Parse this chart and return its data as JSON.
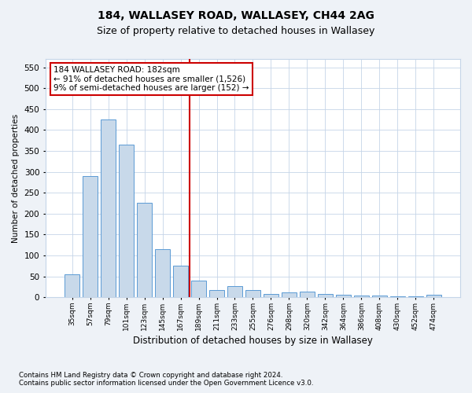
{
  "title": "184, WALLASEY ROAD, WALLASEY, CH44 2AG",
  "subtitle": "Size of property relative to detached houses in Wallasey",
  "xlabel": "Distribution of detached houses by size in Wallasey",
  "ylabel": "Number of detached properties",
  "categories": [
    "35sqm",
    "57sqm",
    "79sqm",
    "101sqm",
    "123sqm",
    "145sqm",
    "167sqm",
    "189sqm",
    "211sqm",
    "233sqm",
    "255sqm",
    "276sqm",
    "298sqm",
    "320sqm",
    "342sqm",
    "364sqm",
    "386sqm",
    "408sqm",
    "430sqm",
    "452sqm",
    "474sqm"
  ],
  "values": [
    55,
    290,
    425,
    365,
    225,
    115,
    75,
    40,
    18,
    27,
    18,
    8,
    12,
    13,
    8,
    5,
    4,
    4,
    2,
    2,
    5
  ],
  "bar_color": "#c8d9ea",
  "bar_edge_color": "#5b9bd5",
  "red_line_index": 7,
  "annotation_title": "184 WALLASEY ROAD: 182sqm",
  "annotation_line1": "← 91% of detached houses are smaller (1,526)",
  "annotation_line2": "9% of semi-detached houses are larger (152) →",
  "ylim": [
    0,
    570
  ],
  "yticks": [
    0,
    50,
    100,
    150,
    200,
    250,
    300,
    350,
    400,
    450,
    500,
    550
  ],
  "footnote1": "Contains HM Land Registry data © Crown copyright and database right 2024.",
  "footnote2": "Contains public sector information licensed under the Open Government Licence v3.0.",
  "background_color": "#eef2f7",
  "plot_background": "#ffffff",
  "title_fontsize": 10,
  "subtitle_fontsize": 9,
  "annotation_box_color": "#ffffff",
  "annotation_box_edge": "#cc0000",
  "grid_color": "#c5d5e8"
}
